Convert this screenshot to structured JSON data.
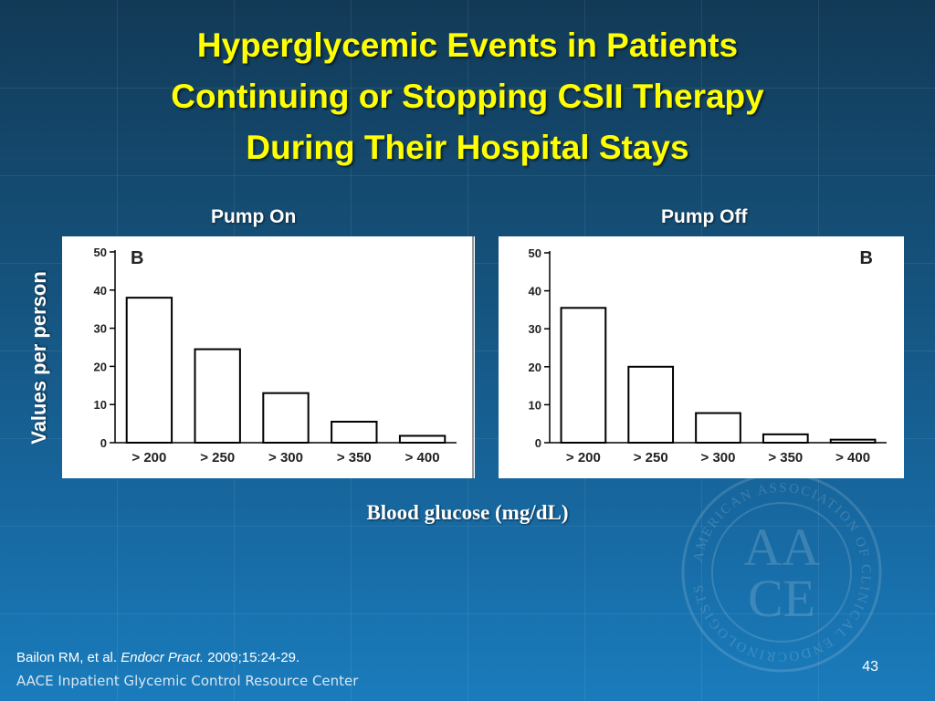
{
  "slide": {
    "title_lines": [
      "Hyperglycemic Events in Patients",
      "Continuing or Stopping CSII Therapy",
      "During Their Hospital Stays"
    ],
    "y_axis_label": "Values per person",
    "x_axis_label": "Blood glucose (mg/dL)",
    "citation_prefix": "Bailon RM, et al. ",
    "citation_journal": "Endocr Pract.",
    "citation_suffix": " 2009;15:24-29.",
    "footer": "AACE Inpatient Glycemic Control Resource Center",
    "page_number": "43"
  },
  "colors": {
    "title": "#ffff00",
    "background_top": "#123a57",
    "background_bottom": "#1a7cbc",
    "panel": "#ffffff",
    "bars": "#ffffff",
    "bar_stroke": "#000000"
  },
  "chart_data": [
    {
      "type": "bar",
      "panel_title": "Pump On",
      "panel_letter": "B",
      "categories": [
        "> 200",
        "> 250",
        "> 300",
        "> 350",
        "> 400"
      ],
      "values": [
        38,
        24.5,
        13,
        5.5,
        1.8
      ],
      "yticks": [
        0,
        10,
        20,
        30,
        40,
        50
      ],
      "ylim": [
        0,
        50
      ],
      "xlabel": "Blood glucose (mg/dL)",
      "ylabel": "Values per person",
      "grid": false,
      "letter_position": "top-left"
    },
    {
      "type": "bar",
      "panel_title": "Pump Off",
      "panel_letter": "B",
      "categories": [
        "> 200",
        "> 250",
        "> 300",
        "> 350",
        "> 400"
      ],
      "values": [
        35.5,
        20,
        7.8,
        2.2,
        0.8
      ],
      "yticks": [
        0,
        10,
        20,
        30,
        40,
        50
      ],
      "ylim": [
        0,
        50
      ],
      "xlabel": "Blood glucose (mg/dL)",
      "ylabel": "Values per person",
      "grid": false,
      "letter_position": "top-right"
    }
  ],
  "seal": {
    "ring_text": "AMERICAN ASSOCIATION OF CLINICAL ENDOCRINOLOGISTS",
    "monogram_top": "AA",
    "monogram_bottom": "CE"
  }
}
